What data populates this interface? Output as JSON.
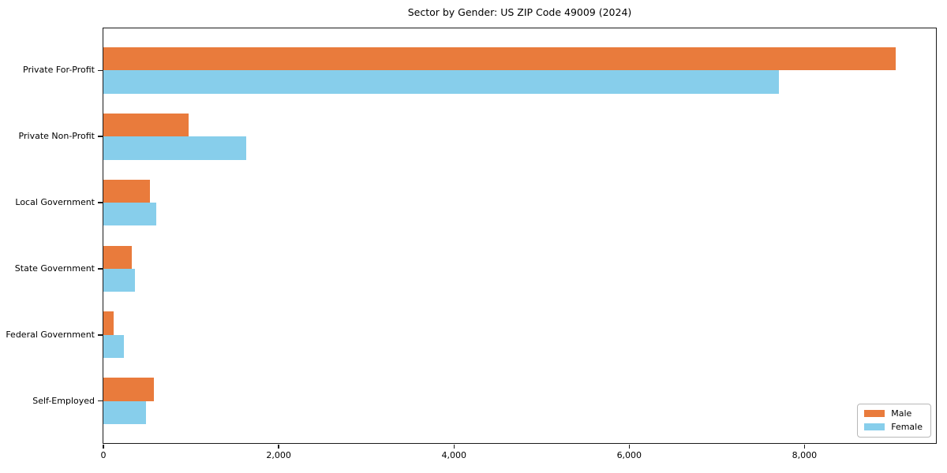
{
  "chart_data": {
    "type": "bar",
    "orientation": "horizontal",
    "title": "Sector by Gender: US ZIP Code 49009 (2024)",
    "categories": [
      "Private For-Profit",
      "Private Non-Profit",
      "Local Government",
      "State Government",
      "Federal Government",
      "Self-Employed"
    ],
    "series": [
      {
        "name": "Male",
        "color": "#E97B3C",
        "values": [
          9040,
          970,
          530,
          325,
          115,
          575
        ]
      },
      {
        "name": "Female",
        "color": "#87CEEB",
        "values": [
          7710,
          1630,
          600,
          360,
          235,
          485
        ]
      }
    ],
    "xlabel": "",
    "ylabel": "",
    "xlim": [
      0,
      9500
    ],
    "xticks": [
      0,
      2000,
      4000,
      6000,
      8000
    ],
    "xtick_labels": [
      "0",
      "2,000",
      "4,000",
      "6,000",
      "8,000"
    ],
    "grid": false,
    "legend_position": "lower right",
    "legend_entries": [
      "Male",
      "Female"
    ]
  },
  "colors": {
    "male": "#E97B3C",
    "female": "#87CEEB",
    "spine": "#1a1a1a",
    "background": "#ffffff",
    "legend_border": "#b8b8b8"
  }
}
